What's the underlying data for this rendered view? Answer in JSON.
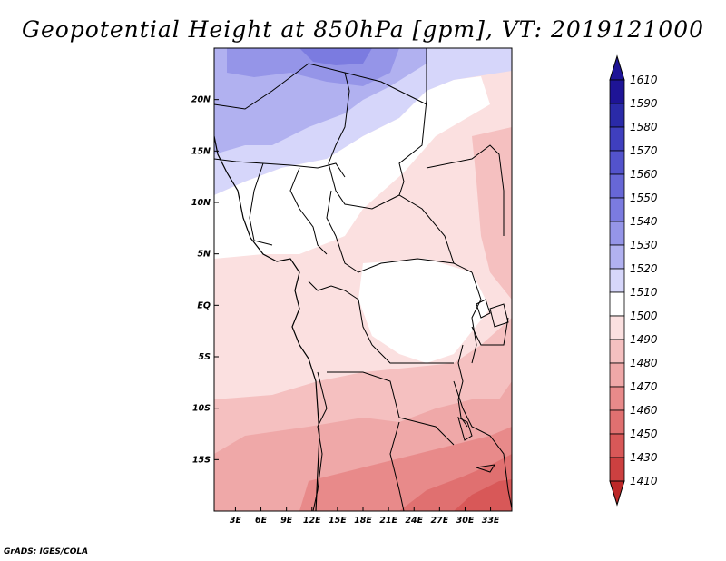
{
  "title": "Geopotential Height at 850hPa [gpm], VT: 2019121000",
  "credit": "GrADS: IGES/COLA",
  "map": {
    "lon_labels": [
      "3E",
      "6E",
      "9E",
      "12E",
      "15E",
      "18E",
      "21E",
      "24E",
      "27E",
      "30E",
      "33E"
    ],
    "lon_values": [
      3,
      6,
      9,
      12,
      15,
      18,
      21,
      24,
      27,
      30,
      33
    ],
    "lat_labels": [
      "20N",
      "15N",
      "10N",
      "5N",
      "EQ",
      "5S",
      "10S",
      "15S"
    ],
    "lat_values": [
      20,
      15,
      10,
      5,
      0,
      -5,
      -10,
      -15
    ],
    "lon_range": [
      0.5,
      35.5
    ],
    "lat_range": [
      -20,
      25
    ]
  },
  "colorbar": {
    "labels": [
      "1610",
      "1590",
      "1580",
      "1570",
      "1560",
      "1550",
      "1540",
      "1530",
      "1520",
      "1510",
      "1500",
      "1490",
      "1480",
      "1470",
      "1460",
      "1450",
      "1430",
      "1410"
    ],
    "colors": [
      "#1e1496",
      "#2a2aa8",
      "#3f3fbe",
      "#5353cc",
      "#6767d6",
      "#7b7be0",
      "#9595e8",
      "#b1b1f0",
      "#d6d6fa",
      "#ffffff",
      "#fbe0e0",
      "#f5c0c0",
      "#efa8a8",
      "#e88a8a",
      "#e07070",
      "#d85858",
      "#cc4040",
      "#bc2828"
    ]
  },
  "colors": {
    "border": "#000000",
    "field_white": "#ffffff",
    "field_light_blue": "#d6d6fa",
    "field_blue": "#b1b1f0",
    "field_pink_1": "#fbe0e0",
    "field_pink_2": "#f5c0c0",
    "field_pink_3": "#efa8a8",
    "field_pink_4": "#e88a8a",
    "field_red": "#e07070"
  }
}
